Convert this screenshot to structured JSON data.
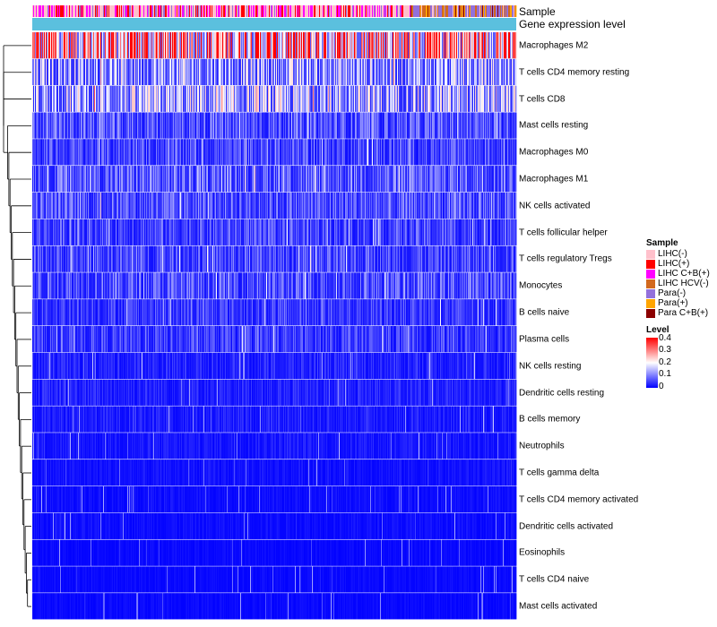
{
  "chart_data": {
    "type": "heatmap",
    "title": "",
    "column_annotations": [
      "Sample",
      "Gene expression level"
    ],
    "rows": [
      {
        "label": "Macrophages M2",
        "mean": 0.3
      },
      {
        "label": "T cells CD4 memory resting",
        "mean": 0.13
      },
      {
        "label": "T cells CD8",
        "mean": 0.14
      },
      {
        "label": "Mast cells resting",
        "mean": 0.07
      },
      {
        "label": "Macrophages M0",
        "mean": 0.06
      },
      {
        "label": "Macrophages M1",
        "mean": 0.08
      },
      {
        "label": "NK cells activated",
        "mean": 0.07
      },
      {
        "label": "T cells follicular helper",
        "mean": 0.06
      },
      {
        "label": "T cells regulatory  Tregs",
        "mean": 0.06
      },
      {
        "label": "Monocytes",
        "mean": 0.07
      },
      {
        "label": "B cells naive",
        "mean": 0.05
      },
      {
        "label": "Plasma cells",
        "mean": 0.05
      },
      {
        "label": "NK cells resting",
        "mean": 0.03
      },
      {
        "label": "Dendritic cells resting",
        "mean": 0.03
      },
      {
        "label": "B cells memory",
        "mean": 0.025
      },
      {
        "label": "Neutrophils",
        "mean": 0.02
      },
      {
        "label": "T cells gamma delta",
        "mean": 0.015
      },
      {
        "label": "T cells CD4 memory activated",
        "mean": 0.012
      },
      {
        "label": "Dendritic cells activated",
        "mean": 0.012
      },
      {
        "label": "Eosinophils",
        "mean": 0.008
      },
      {
        "label": "T cells CD4 naive",
        "mean": 0.008
      },
      {
        "label": "Mast cells activated",
        "mean": 0.008
      }
    ],
    "n_columns": 540,
    "color_scale": {
      "title": "Level",
      "min": 0,
      "max": 0.4,
      "colors": [
        "#0000ff",
        "#ffffff",
        "#ff0000"
      ],
      "ticks": [
        "0.4",
        "0.3",
        "0.2",
        "0.1",
        "0"
      ]
    },
    "sample_legend": {
      "title": "Sample",
      "items": [
        {
          "label": "LIHC(-)",
          "color": "#ffc0cb"
        },
        {
          "label": "LIHC(+)",
          "color": "#ff0000"
        },
        {
          "label": "LIHC C+B(+)",
          "color": "#ff00ff"
        },
        {
          "label": "LIHC HCV(-)",
          "color": "#d2691e"
        },
        {
          "label": "Para(-)",
          "color": "#9370db"
        },
        {
          "label": "Para(+)",
          "color": "#ffa500"
        },
        {
          "label": "Para C+B(+)",
          "color": "#8b0000"
        }
      ]
    },
    "gene_expression_color": "#5bc0de"
  }
}
